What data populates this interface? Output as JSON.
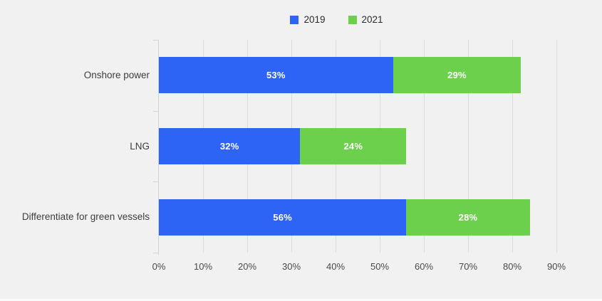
{
  "legend": {
    "items": [
      {
        "id": "2019",
        "label": "2019",
        "color": "#2d64f5"
      },
      {
        "id": "2021",
        "label": "2021",
        "color": "#6dd04c"
      }
    ]
  },
  "chart_data": {
    "type": "bar",
    "orientation": "horizontal",
    "stacked": true,
    "title": "",
    "categories": [
      "Onshore power",
      "LNG",
      "Differentiate for green vessels"
    ],
    "series": [
      {
        "name": "2019",
        "color": "#2d64f5",
        "values": [
          53,
          32,
          56
        ],
        "labels": [
          "53%",
          "32%",
          "56%"
        ]
      },
      {
        "name": "2021",
        "color": "#6dd04c",
        "values": [
          29,
          24,
          28
        ],
        "labels": [
          "29%",
          "24%",
          "28%"
        ]
      }
    ],
    "totals": [
      82,
      56,
      84
    ],
    "x_axis": {
      "min": 0,
      "max": 90,
      "step": 10,
      "tick_labels": [
        "0%",
        "10%",
        "20%",
        "30%",
        "40%",
        "50%",
        "60%",
        "70%",
        "80%",
        "90%"
      ],
      "suffix": "%"
    },
    "grid": true,
    "legend_position": "top-center",
    "colors": {
      "background": "#f1f1f2",
      "gridline": "#dbdbdb",
      "axis_line": "#d4d4d4",
      "category_label_text": "#3d3d3d",
      "tick_label_text": "#4a4a4a",
      "bar_label_text": "#ffffff"
    }
  }
}
